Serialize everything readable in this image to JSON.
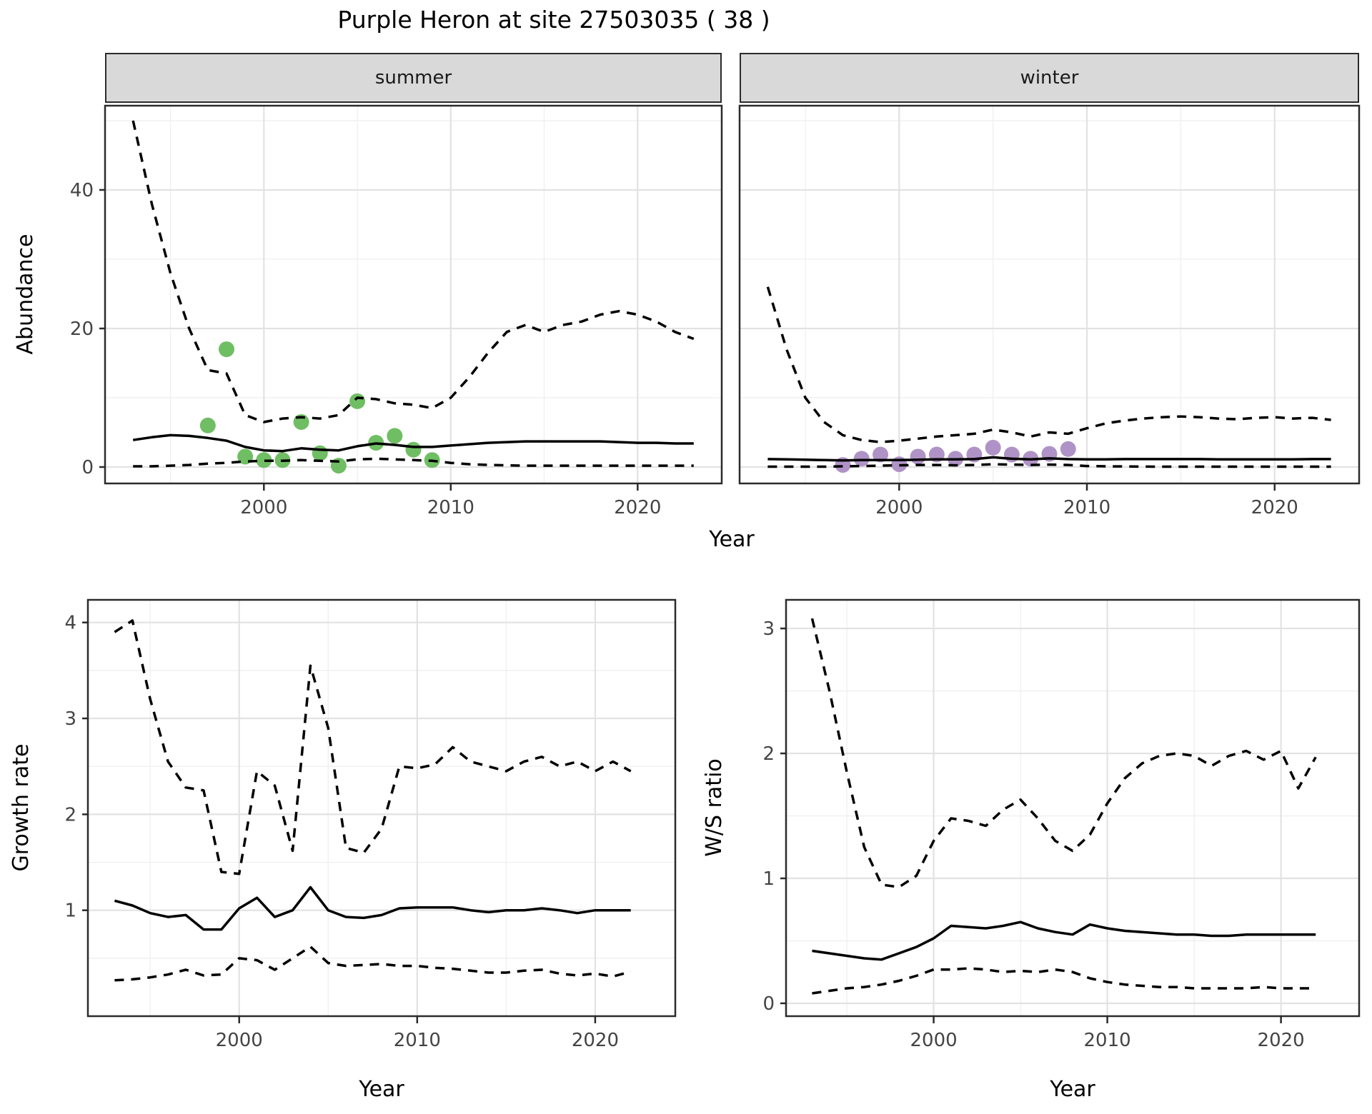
{
  "title": "Purple Heron at site 27503035 ( 38 )",
  "facets": [
    "summer",
    "winter"
  ],
  "axis_titles": {
    "x": "Year",
    "y_abundance": "Abundance",
    "y_growth": "Growth rate",
    "y_ws": "W/S ratio"
  },
  "colors": {
    "line": "#000000",
    "observed_summer": "#6FBE63",
    "observed_winter": "#B093C6",
    "strip_bg": "#D9D9D9",
    "panel_border": "#2B2B2B",
    "grid_major": "#E2E2E2",
    "grid_minor": "#F0F0F0",
    "tick_label": "#444444",
    "tick_mark": "#2B2B2B"
  },
  "chart_data": [
    {
      "id": "summer",
      "type": "line",
      "facet": "summer",
      "ylabel": "Abundance",
      "xlabel": "Year",
      "xlim": [
        1991.5,
        2024.5
      ],
      "ylim": [
        -2.37,
        52.16
      ],
      "x_ticks": [
        2000,
        2010,
        2020
      ],
      "x_minor": [
        1995,
        2005,
        2015
      ],
      "y_ticks": [
        0,
        20,
        40
      ],
      "y_minor": [
        10,
        30,
        50
      ],
      "years": [
        1993,
        1994,
        1995,
        1996,
        1997,
        1998,
        1999,
        2000,
        2001,
        2002,
        2003,
        2004,
        2005,
        2006,
        2007,
        2008,
        2009,
        2010,
        2011,
        2012,
        2013,
        2014,
        2015,
        2016,
        2017,
        2018,
        2019,
        2020,
        2021,
        2022,
        2023
      ],
      "series": [
        {
          "name": "upper_ci",
          "style": "dashed",
          "values": [
            50,
            38,
            28,
            20,
            14,
            13.5,
            7.5,
            6.5,
            7,
            7.2,
            7,
            7.5,
            10,
            9.8,
            9.2,
            9,
            8.5,
            10,
            13,
            16.5,
            19.5,
            20.5,
            19.5,
            20.5,
            21,
            22,
            22.5,
            22,
            21,
            19.5,
            18.5
          ]
        },
        {
          "name": "median",
          "style": "solid",
          "values": [
            3.9,
            4.3,
            4.6,
            4.5,
            4.2,
            3.8,
            2.9,
            2.4,
            2.3,
            2.7,
            2.5,
            2.4,
            3.0,
            3.4,
            3.2,
            2.9,
            2.9,
            3.1,
            3.3,
            3.5,
            3.6,
            3.7,
            3.7,
            3.7,
            3.7,
            3.7,
            3.6,
            3.5,
            3.5,
            3.4,
            3.4
          ]
        },
        {
          "name": "lower_ci",
          "style": "dashed",
          "values": [
            0.1,
            0.1,
            0.2,
            0.3,
            0.5,
            0.6,
            0.8,
            0.9,
            0.9,
            1.0,
            0.9,
            0.8,
            1.1,
            1.2,
            1.1,
            1.0,
            0.9,
            0.6,
            0.4,
            0.3,
            0.25,
            0.2,
            0.2,
            0.2,
            0.2,
            0.2,
            0.2,
            0.2,
            0.2,
            0.2,
            0.2
          ]
        }
      ],
      "observations": {
        "name": "observed_abundance_summer",
        "color_key": "observed_summer",
        "years": [
          1997,
          1998,
          1999,
          2000,
          2001,
          2002,
          2003,
          2004,
          2005,
          2006,
          2007,
          2008,
          2009
        ],
        "values": [
          6,
          17,
          1.5,
          1,
          1,
          6.5,
          2,
          0.2,
          9.5,
          3.5,
          4.5,
          2.5,
          1
        ]
      }
    },
    {
      "id": "winter",
      "type": "line",
      "facet": "winter",
      "ylabel": "Abundance",
      "xlabel": "Year",
      "xlim": [
        1991.5,
        2024.5
      ],
      "ylim": [
        -2.37,
        52.16
      ],
      "x_ticks": [
        2000,
        2010,
        2020
      ],
      "x_minor": [
        1995,
        2005,
        2015
      ],
      "y_ticks": [
        0,
        20,
        40
      ],
      "y_minor": [
        10,
        30,
        50
      ],
      "years": [
        1993,
        1994,
        1995,
        1996,
        1997,
        1998,
        1999,
        2000,
        2001,
        2002,
        2003,
        2004,
        2005,
        2006,
        2007,
        2008,
        2009,
        2010,
        2011,
        2012,
        2013,
        2014,
        2015,
        2016,
        2017,
        2018,
        2019,
        2020,
        2021,
        2022,
        2023
      ],
      "series": [
        {
          "name": "upper_ci",
          "style": "dashed",
          "values": [
            26,
            17,
            10,
            6.5,
            4.6,
            3.9,
            3.6,
            3.8,
            4.1,
            4.4,
            4.6,
            4.8,
            5.4,
            5.0,
            4.4,
            5.0,
            4.8,
            5.6,
            6.3,
            6.7,
            7.0,
            7.2,
            7.3,
            7.2,
            7.0,
            6.9,
            7.1,
            7.2,
            7.0,
            7.1,
            6.8
          ]
        },
        {
          "name": "median",
          "style": "solid",
          "values": [
            1.15,
            1.1,
            1.05,
            1.0,
            0.95,
            1.0,
            1.0,
            1.0,
            1.05,
            1.1,
            1.1,
            1.15,
            1.4,
            1.2,
            1.1,
            1.25,
            1.15,
            1.1,
            1.1,
            1.15,
            1.15,
            1.15,
            1.15,
            1.15,
            1.1,
            1.1,
            1.1,
            1.1,
            1.1,
            1.15,
            1.15
          ]
        },
        {
          "name": "lower_ci",
          "style": "dashed",
          "values": [
            0.05,
            0.05,
            0.05,
            0.05,
            0.1,
            0.15,
            0.2,
            0.25,
            0.3,
            0.3,
            0.25,
            0.3,
            0.4,
            0.35,
            0.3,
            0.35,
            0.3,
            0.15,
            0.1,
            0.08,
            0.06,
            0.05,
            0.05,
            0.05,
            0.05,
            0.05,
            0.05,
            0.05,
            0.05,
            0.05,
            0.05
          ]
        }
      ],
      "observations": {
        "name": "observed_abundance_winter",
        "color_key": "observed_winter",
        "years": [
          1997,
          1998,
          1999,
          2000,
          2001,
          2002,
          2003,
          2004,
          2005,
          2006,
          2007,
          2008,
          2009
        ],
        "values": [
          0.3,
          1.2,
          1.8,
          0.4,
          1.5,
          1.8,
          1.2,
          1.8,
          2.8,
          1.8,
          1.2,
          1.9,
          2.6
        ]
      }
    },
    {
      "id": "growth",
      "type": "line",
      "facet": null,
      "ylabel": "Growth rate",
      "xlabel": "Year",
      "xlim": [
        1991.5,
        2024.5
      ],
      "ylim": [
        -0.104,
        4.236
      ],
      "x_ticks": [
        2000,
        2010,
        2020
      ],
      "x_minor": [
        1995,
        2005,
        2015
      ],
      "y_ticks": [
        1,
        2,
        3,
        4
      ],
      "y_minor": [
        0.5,
        1.5,
        2.5,
        3.5
      ],
      "years": [
        1993,
        1994,
        1995,
        1996,
        1997,
        1998,
        1999,
        2000,
        2001,
        2002,
        2003,
        2004,
        2005,
        2006,
        2007,
        2008,
        2009,
        2010,
        2011,
        2012,
        2013,
        2014,
        2015,
        2016,
        2017,
        2018,
        2019,
        2020,
        2021,
        2022
      ],
      "series": [
        {
          "name": "upper_ci",
          "style": "dashed",
          "values": [
            3.9,
            4.02,
            3.2,
            2.55,
            2.28,
            2.25,
            1.4,
            1.38,
            2.45,
            2.3,
            1.62,
            3.55,
            2.9,
            1.65,
            1.6,
            1.85,
            2.5,
            2.48,
            2.52,
            2.7,
            2.55,
            2.5,
            2.45,
            2.55,
            2.6,
            2.5,
            2.55,
            2.45,
            2.55,
            2.45
          ]
        },
        {
          "name": "median",
          "style": "solid",
          "values": [
            1.1,
            1.05,
            0.97,
            0.93,
            0.95,
            0.8,
            0.8,
            1.02,
            1.13,
            0.93,
            1.0,
            1.24,
            1.0,
            0.93,
            0.92,
            0.95,
            1.02,
            1.03,
            1.03,
            1.03,
            1.0,
            0.98,
            1.0,
            1.0,
            1.02,
            1.0,
            0.97,
            1.0,
            1.0,
            1.0
          ]
        },
        {
          "name": "lower_ci",
          "style": "dashed",
          "values": [
            0.27,
            0.28,
            0.3,
            0.33,
            0.38,
            0.32,
            0.33,
            0.5,
            0.48,
            0.38,
            0.5,
            0.62,
            0.45,
            0.42,
            0.43,
            0.44,
            0.42,
            0.42,
            0.4,
            0.39,
            0.37,
            0.35,
            0.35,
            0.37,
            0.38,
            0.34,
            0.32,
            0.34,
            0.31,
            0.36
          ]
        }
      ],
      "observations": null
    },
    {
      "id": "ws",
      "type": "line",
      "facet": null,
      "ylabel": "W/S ratio",
      "xlabel": "Year",
      "xlim": [
        1991.5,
        2024.5
      ],
      "ylim": [
        -0.103,
        3.229
      ],
      "x_ticks": [
        2000,
        2010,
        2020
      ],
      "x_minor": [
        1995,
        2005,
        2015
      ],
      "y_ticks": [
        0,
        1,
        2,
        3
      ],
      "y_minor": [
        0.5,
        1.5,
        2.5
      ],
      "years": [
        1993,
        1994,
        1995,
        1996,
        1997,
        1998,
        1999,
        2000,
        2001,
        2002,
        2003,
        2004,
        2005,
        2006,
        2007,
        2008,
        2009,
        2010,
        2011,
        2012,
        2013,
        2014,
        2015,
        2016,
        2017,
        2018,
        2019,
        2020,
        2021,
        2022
      ],
      "series": [
        {
          "name": "upper_ci",
          "style": "dashed",
          "values": [
            3.08,
            2.5,
            1.85,
            1.25,
            0.95,
            0.93,
            1.02,
            1.3,
            1.48,
            1.46,
            1.42,
            1.55,
            1.63,
            1.48,
            1.3,
            1.22,
            1.35,
            1.6,
            1.8,
            1.92,
            1.98,
            2.0,
            1.98,
            1.9,
            1.98,
            2.02,
            1.95,
            2.02,
            1.72,
            1.97
          ]
        },
        {
          "name": "median",
          "style": "solid",
          "values": [
            0.42,
            0.4,
            0.38,
            0.36,
            0.35,
            0.4,
            0.45,
            0.52,
            0.62,
            0.61,
            0.6,
            0.62,
            0.65,
            0.6,
            0.57,
            0.55,
            0.63,
            0.6,
            0.58,
            0.57,
            0.56,
            0.55,
            0.55,
            0.54,
            0.54,
            0.55,
            0.55,
            0.55,
            0.55,
            0.55
          ]
        },
        {
          "name": "lower_ci",
          "style": "dashed",
          "values": [
            0.08,
            0.1,
            0.12,
            0.13,
            0.15,
            0.18,
            0.22,
            0.27,
            0.27,
            0.28,
            0.27,
            0.25,
            0.26,
            0.25,
            0.27,
            0.25,
            0.2,
            0.17,
            0.15,
            0.14,
            0.13,
            0.13,
            0.12,
            0.12,
            0.12,
            0.12,
            0.13,
            0.12,
            0.12,
            0.12
          ]
        }
      ],
      "observations": null
    }
  ]
}
